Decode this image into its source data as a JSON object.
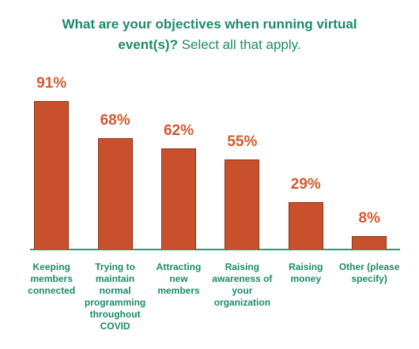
{
  "chart_data": {
    "type": "bar",
    "title": "What are your objectives when running virtual event(s)?",
    "subtitle": "Select all that apply.",
    "categories": [
      "Keeping members connected",
      "Trying to maintain normal programming throughout COVID",
      "Attracting new members",
      "Raising awareness of your organization",
      "Raising money",
      "Other (please specify)"
    ],
    "values": [
      91,
      68,
      62,
      55,
      29,
      8
    ],
    "value_labels": [
      "91%",
      "68%",
      "62%",
      "55%",
      "29%",
      "8%"
    ],
    "color": "#c9502c"
  }
}
